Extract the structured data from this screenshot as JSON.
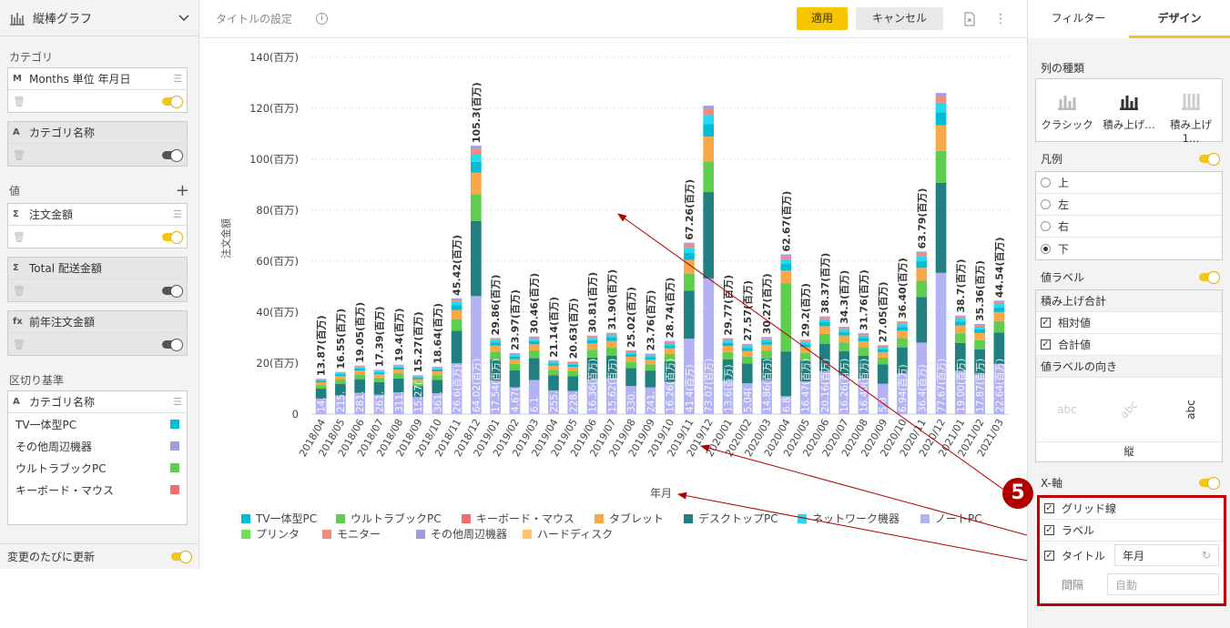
{
  "left": {
    "title": "縦棒グラフ",
    "category_label": "カテゴリ",
    "category_field": "Months 単位 年月日",
    "category_field_type": "M",
    "category_name_field": "カテゴリ名称",
    "category_name_type": "A",
    "values_label": "値",
    "value_fields": [
      {
        "type": "Σ",
        "label": "注文金額"
      },
      {
        "type": "Σ",
        "label": "Total 配送金額"
      },
      {
        "type": "fx",
        "label": "前年注文金額"
      }
    ],
    "split_label": "区切り基準",
    "split_field": "カテゴリ名称",
    "split_field_type": "A",
    "split_items": [
      {
        "label": "TV一体型PC",
        "color": "#00bcd4"
      },
      {
        "label": "その他周辺機器",
        "color": "#9e9edc"
      },
      {
        "label": "ウルトラブックPC",
        "color": "#5fcd4f"
      },
      {
        "label": "キーボード・マウス",
        "color": "#f07070"
      }
    ],
    "auto_update": "変更のたびに更新"
  },
  "top": {
    "title_setting": "タイトルの設定",
    "apply": "適用",
    "cancel": "キャンセル"
  },
  "right": {
    "tabs": [
      "フィルター",
      "デザイン"
    ],
    "column_type_label": "列の種類",
    "column_types": [
      "クラシック",
      "積み上げ…",
      "積み上げ 1…"
    ],
    "legend_label": "凡例",
    "legend_options": [
      "上",
      "左",
      "右",
      "下"
    ],
    "value_label": "値ラベル",
    "stack_total": "積み上げ合計",
    "relative": "相対値",
    "total": "合計値",
    "label_orientation": "値ラベルの向き",
    "orientation_value": "縦",
    "orient_sample": "abc",
    "x_axis": "X-軸",
    "grid": "グリッド線",
    "label": "ラベル",
    "title": "タイトル",
    "title_value": "年月",
    "interval": "間隔",
    "interval_placeholder": "自動",
    "step": "5"
  },
  "chart_data": {
    "type": "bar",
    "stacked": true,
    "ylabel": "注文金額",
    "xlabel": "年月",
    "yticks": [
      "0",
      "20(百万)",
      "40(百万)",
      "60(百万)",
      "80(百万)",
      "100(百万)",
      "120(百万)",
      "140(百万)"
    ],
    "ylim": [
      0,
      140
    ],
    "categories": [
      "2018/04",
      "2018/05",
      "2018/06",
      "2018/07",
      "2018/08",
      "2018/09",
      "2018/10",
      "2018/11",
      "2018/12",
      "2019/01",
      "2019/02",
      "2019/03",
      "2019/04",
      "2019/05",
      "2019/06",
      "2019/07",
      "2019/08",
      "2019/09",
      "2019/10",
      "2019/11",
      "2019/12",
      "2020/01",
      "2020/02",
      "2020/03",
      "2020/04",
      "2020/05",
      "2020/06",
      "2020/07",
      "2020/08",
      "2020/09",
      "2020/10",
      "2020/11",
      "2020/12",
      "2021/01",
      "2021/02",
      "2021/03"
    ],
    "totals": [
      13.87,
      16.55,
      19.05,
      17.39,
      19.4,
      15.27,
      18.64,
      45.42,
      105.3,
      29.86,
      23.97,
      30.46,
      21.14,
      20.63,
      30.81,
      31.9,
      25.02,
      23.76,
      28.74,
      67.26,
      121.0,
      29.77,
      27.57,
      30.27,
      62.67,
      29.2,
      38.37,
      34.3,
      31.76,
      27.05,
      36.4,
      63.79,
      126.0,
      38.7,
      35.36,
      44.54
    ],
    "total_labels": [
      "13.87(百万)",
      "16.55(百万)",
      "19.05(百万)",
      "17.39(百万)",
      "19.4(百万)",
      "15.27(百万)",
      "18.64(百万)",
      "45.42(百万)",
      "105.3(百万)",
      "29.86(百万)",
      "23.97(百万)",
      "30.46(百万)",
      "21.14(百万)",
      "20.63(百万)",
      "30.81(百万)",
      "31.90(百万)",
      "25.02(百万)",
      "23.76(百万)",
      "28.74(百万)",
      "67.26(百万)",
      "",
      "29.77(百万)",
      "27.57(百万)",
      "30.27(百万)",
      "62.67(百万)",
      "29.2(百万)",
      "38.37(百万)",
      "34.3(百万)",
      "31.76(百万)",
      "27.05(百万)",
      "36.40(百万)",
      "63.79(百万)",
      "",
      "38.7(百万)",
      "35.36(百万)",
      "44.54(百万)"
    ],
    "note_labels": [
      "14.",
      "215.",
      "281.",
      "261.",
      "311.",
      "15.27(",
      "361.",
      "26.6(百万)",
      "64.02(百万)",
      "17.54(百万)",
      "4.67(",
      "6.1",
      "255.",
      "228.",
      "16.36(百万)",
      "15.62(百万)",
      "330.",
      "241.",
      "16.26(百万)",
      "41.4(百万)",
      "73.07(百万)",
      "13.6(百万)",
      "5.04(",
      "14.86(百万)",
      "6.8",
      "16.47(百万)",
      "20.16(百万)",
      "16.26(百万)",
      "16.40(百万)",
      "5.8",
      "6.94(百万)",
      "36.4(百万)",
      "77.67(百万)",
      "19.00(百万)",
      "17.87(百万)",
      "22.64(百万)"
    ],
    "note_values": [
      0,
      0,
      0,
      0,
      0,
      0,
      0,
      0,
      0,
      0,
      0,
      0,
      0,
      0,
      0,
      0,
      0,
      0,
      0,
      0,
      0,
      0,
      0,
      0,
      26.79,
      0,
      0,
      0,
      0,
      0,
      0,
      0,
      0,
      0,
      0,
      0
    ],
    "series": [
      {
        "name": "TV一体型PC",
        "color": "#00bcd4"
      },
      {
        "name": "ウルトラブックPC",
        "color": "#5fcd4f"
      },
      {
        "name": "キーボード・マウス",
        "color": "#f07070"
      },
      {
        "name": "タブレット",
        "color": "#f7a94a"
      },
      {
        "name": "デスクトップPC",
        "color": "#227f7f"
      },
      {
        "name": "ネットワーク機器",
        "color": "#26d9ee"
      },
      {
        "name": "ノートPC",
        "color": "#b3b3f4"
      },
      {
        "name": "プリンタ",
        "color": "#6fe04f"
      },
      {
        "name": "モニター",
        "color": "#f28a80"
      },
      {
        "name": "その他周辺機器",
        "color": "#9e9edc"
      },
      {
        "name": "ハードディスク",
        "color": "#ffc46a"
      }
    ]
  }
}
